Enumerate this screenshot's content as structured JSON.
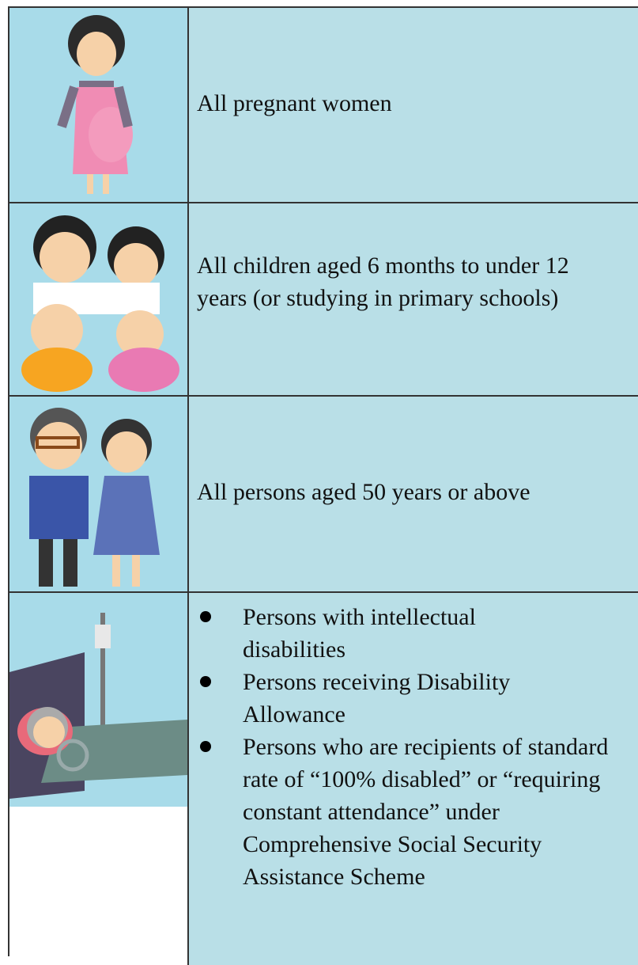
{
  "table": {
    "rows": [
      {
        "text": "All pregnant women"
      },
      {
        "text": "All children aged 6 months to under 12 years (or studying in primary schools)"
      },
      {
        "text": "All persons aged 50 years or above"
      },
      {
        "bullets": [
          "Persons with intellectual disabilities",
          "Persons receiving Disability Allowance",
          "Persons who are recipients of standard rate of “100% disabled” or “requiring constant attendance” under Comprehensive Social Security Assistance Scheme"
        ]
      }
    ]
  }
}
